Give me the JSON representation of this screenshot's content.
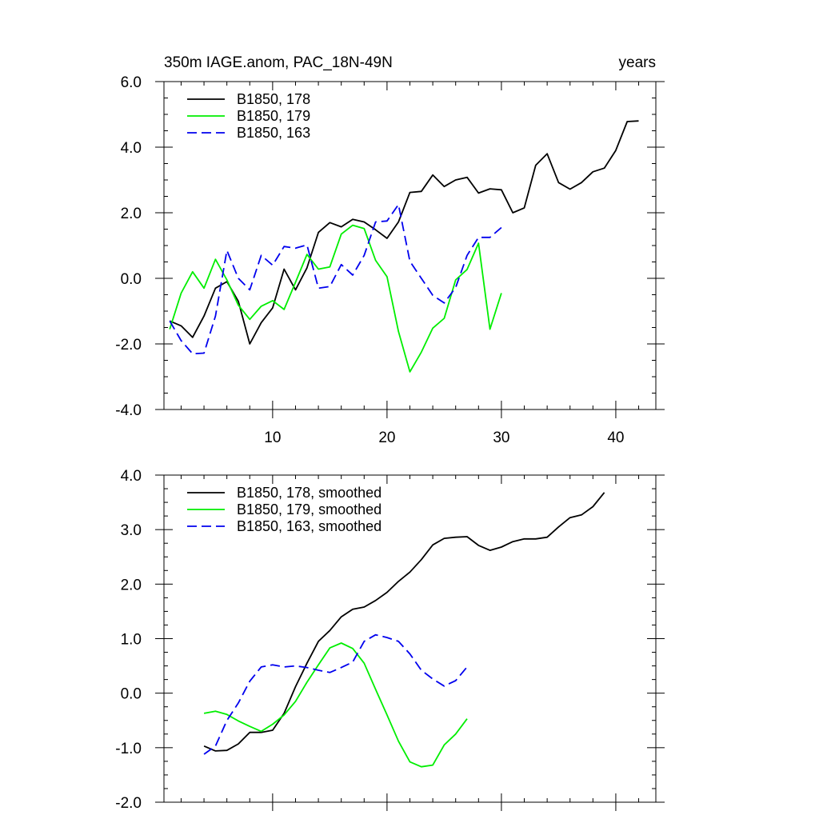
{
  "chart_data": [
    {
      "type": "line",
      "title": "350m IAGE.anom, PAC_18N-49N",
      "title_right": "years",
      "xlabel": "",
      "ylabel": "",
      "xlim": [
        0.5,
        43.5
      ],
      "ylim": [
        -4.0,
        6.0
      ],
      "xticks": [
        10,
        20,
        30,
        40
      ],
      "xtick_labels": [
        "10",
        "20",
        "30",
        "40"
      ],
      "yticks": [
        -4.0,
        -2.0,
        0.0,
        2.0,
        4.0,
        6.0
      ],
      "ytick_labels": [
        "-4.0",
        "-2.0",
        "0.0",
        "2.0",
        "4.0",
        "6.0"
      ],
      "legend_position": "top-left",
      "series": [
        {
          "name": "B1850, 178",
          "color": "#000000",
          "dash": "solid",
          "x": [
            1,
            2,
            3,
            4,
            5,
            6,
            7,
            8,
            9,
            10,
            11,
            12,
            13,
            14,
            15,
            16,
            17,
            18,
            19,
            20,
            21,
            22,
            23,
            24,
            25,
            26,
            27,
            28,
            29,
            30,
            31,
            32,
            33,
            34,
            35,
            36,
            37,
            38,
            39,
            40,
            41,
            42
          ],
          "values": [
            -1.3,
            -1.45,
            -1.8,
            -1.15,
            -0.3,
            -0.1,
            -0.7,
            -2.0,
            -1.35,
            -0.9,
            0.28,
            -0.35,
            0.32,
            1.4,
            1.7,
            1.57,
            1.8,
            1.72,
            1.48,
            1.22,
            1.72,
            2.62,
            2.65,
            3.15,
            2.8,
            3.0,
            3.08,
            2.6,
            2.73,
            2.7,
            2.0,
            2.15,
            3.45,
            3.8,
            2.92,
            2.72,
            2.92,
            3.25,
            3.36,
            3.9,
            4.78,
            4.8
          ]
        },
        {
          "name": "B1850, 179",
          "color": "#00ee00",
          "dash": "solid",
          "x": [
            1,
            2,
            3,
            4,
            5,
            6,
            7,
            8,
            9,
            10,
            11,
            12,
            13,
            14,
            15,
            16,
            17,
            18,
            19,
            20,
            21,
            22,
            23,
            24,
            25,
            26,
            27,
            28,
            29,
            30
          ],
          "values": [
            -1.55,
            -0.45,
            0.2,
            -0.3,
            0.58,
            -0.05,
            -0.82,
            -1.25,
            -0.85,
            -0.68,
            -0.95,
            -0.12,
            0.73,
            0.28,
            0.35,
            1.35,
            1.62,
            1.52,
            0.55,
            0.05,
            -1.62,
            -2.85,
            -2.25,
            -1.52,
            -1.22,
            -0.05,
            0.27,
            1.07,
            -1.55,
            -0.45
          ]
        },
        {
          "name": "B1850, 163",
          "color": "#0000ee",
          "dash": "dashed",
          "x": [
            1,
            2,
            3,
            4,
            5,
            6,
            7,
            8,
            9,
            10,
            11,
            12,
            13,
            14,
            15,
            16,
            17,
            18,
            19,
            20,
            21,
            22,
            23,
            24,
            25,
            26,
            27,
            28,
            29,
            30
          ],
          "values": [
            -1.3,
            -1.9,
            -2.3,
            -2.28,
            -1.15,
            0.85,
            0.0,
            -0.35,
            0.7,
            0.4,
            0.97,
            0.92,
            1.02,
            -0.3,
            -0.25,
            0.42,
            0.1,
            0.7,
            1.72,
            1.75,
            2.25,
            0.52,
            0.0,
            -0.52,
            -0.75,
            -0.28,
            0.7,
            1.25,
            1.25,
            1.55
          ]
        }
      ]
    },
    {
      "type": "line",
      "title": "",
      "xlabel": "",
      "ylabel": "",
      "xlim": [
        0.5,
        43.5
      ],
      "ylim": [
        -2.0,
        4.0
      ],
      "xticks": [
        10,
        20,
        30,
        40
      ],
      "xtick_labels": [],
      "yticks": [
        -2.0,
        -1.0,
        0.0,
        1.0,
        2.0,
        3.0,
        4.0
      ],
      "ytick_labels": [
        "-2.0",
        "-1.0",
        "0.0",
        "1.0",
        "2.0",
        "3.0",
        "4.0"
      ],
      "legend_position": "top-left",
      "series": [
        {
          "name": "B1850, 178, smoothed",
          "color": "#000000",
          "dash": "solid",
          "x": [
            4,
            5,
            6,
            7,
            8,
            9,
            10,
            11,
            12,
            13,
            14,
            15,
            16,
            17,
            18,
            19,
            20,
            21,
            22,
            23,
            24,
            25,
            26,
            27,
            28,
            29,
            30,
            31,
            32,
            33,
            34,
            35,
            36,
            37,
            38,
            39
          ],
          "values": [
            -0.97,
            -1.06,
            -1.05,
            -0.93,
            -0.72,
            -0.72,
            -0.68,
            -0.37,
            0.12,
            0.55,
            0.95,
            1.15,
            1.4,
            1.54,
            1.58,
            1.7,
            1.85,
            2.05,
            2.22,
            2.45,
            2.72,
            2.84,
            2.86,
            2.87,
            2.71,
            2.62,
            2.68,
            2.78,
            2.83,
            2.83,
            2.86,
            3.05,
            3.22,
            3.27,
            3.42,
            3.68
          ]
        },
        {
          "name": "B1850, 179, smoothed",
          "color": "#00ee00",
          "dash": "solid",
          "x": [
            4,
            5,
            6,
            7,
            8,
            9,
            10,
            11,
            12,
            13,
            14,
            15,
            16,
            17,
            18,
            19,
            20,
            21,
            22,
            23,
            24,
            25,
            26,
            27
          ],
          "values": [
            -0.37,
            -0.33,
            -0.39,
            -0.51,
            -0.61,
            -0.7,
            -0.57,
            -0.4,
            -0.15,
            0.2,
            0.52,
            0.83,
            0.92,
            0.82,
            0.55,
            0.07,
            -0.4,
            -0.88,
            -1.26,
            -1.35,
            -1.32,
            -0.95,
            -0.75,
            -0.47
          ]
        },
        {
          "name": "B1850, 163, smoothed",
          "color": "#0000ee",
          "dash": "dashed",
          "x": [
            4,
            5,
            6,
            7,
            8,
            9,
            10,
            11,
            12,
            13,
            14,
            15,
            16,
            17,
            18,
            19,
            20,
            21,
            22,
            23,
            24,
            25,
            26,
            27
          ],
          "values": [
            -1.12,
            -0.97,
            -0.5,
            -0.18,
            0.22,
            0.48,
            0.52,
            0.48,
            0.5,
            0.47,
            0.42,
            0.38,
            0.47,
            0.57,
            0.95,
            1.07,
            1.02,
            0.95,
            0.72,
            0.42,
            0.26,
            0.13,
            0.23,
            0.48
          ]
        }
      ]
    }
  ]
}
